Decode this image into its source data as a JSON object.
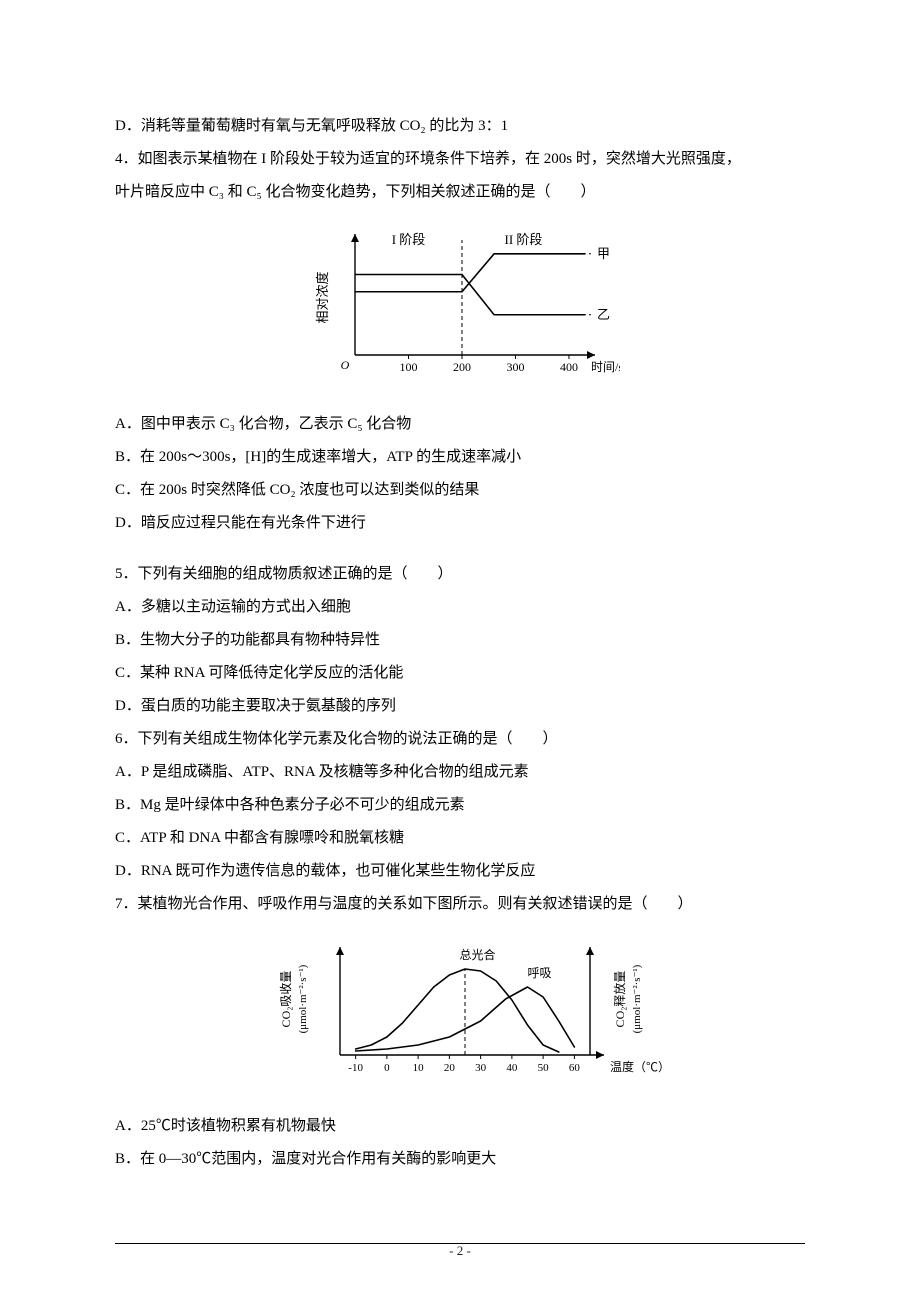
{
  "q3": {
    "optD": "D．消耗等量葡萄糖时有氧与无氧呼吸释放 CO₂ 的比为 3：1"
  },
  "q4": {
    "stem1": "4．如图表示某植物在 I 阶段处于较为适宜的环境条件下培养，在 200s 时，突然增大光照强度，",
    "stem2": "叶片暗反应中 C₃ 和 C₅ 化合物变化趋势，下列相关叙述正确的是（　　）",
    "optA": "A．图中甲表示 C₃ 化合物，乙表示 C₅ 化合物",
    "optB": "B．在 200s～300s，[H]的生成速率增大，ATP 的生成速率减小",
    "optC": "C．在 200s 时突然降低 CO₂ 浓度也可以达到类似的结果",
    "optD": "D．暗反应过程只能在有光条件下进行",
    "chart": {
      "type": "line",
      "xlabel": "时间/s",
      "ylabel": "相对浓度",
      "xticks": [
        100,
        200,
        300,
        400
      ],
      "xlim": [
        0,
        430
      ],
      "divider_x": 200,
      "phase1_label": "I 阶段",
      "phase2_label": "II 阶段",
      "axis_color": "#000000",
      "line_color": "#000000",
      "background": "#ffffff",
      "series": [
        {
          "name": "甲",
          "label": "甲",
          "points": [
            [
              0,
              55
            ],
            [
              200,
              55
            ],
            [
              260,
              88
            ],
            [
              430,
              88
            ]
          ]
        },
        {
          "name": "乙",
          "label": "乙",
          "points": [
            [
              0,
              70
            ],
            [
              200,
              70
            ],
            [
              260,
              35
            ],
            [
              430,
              35
            ]
          ]
        }
      ],
      "label_fontsize": 13
    }
  },
  "q5": {
    "stem": "5．下列有关细胞的组成物质叙述正确的是（　　）",
    "optA": "A．多糖以主动运输的方式出入细胞",
    "optB": "B．生物大分子的功能都具有物种特异性",
    "optC": "C．某种 RNA 可降低待定化学反应的活化能",
    "optD": "D．蛋白质的功能主要取决于氨基酸的序列"
  },
  "q6": {
    "stem": "6．下列有关组成生物体化学元素及化合物的说法正确的是（　　）",
    "optA": "A．P 是组成磷脂、ATP、RNA 及核糖等多种化合物的组成元素",
    "optB": "B．Mg 是叶绿体中各种色素分子必不可少的组成元素",
    "optC": "C．ATP 和 DNA 中都含有腺嘌呤和脱氧核糖",
    "optD": "D．RNA 既可作为遗传信息的载体，也可催化某些生物化学反应"
  },
  "q7": {
    "stem": "7．某植物光合作用、呼吸作用与温度的关系如下图所示。则有关叙述错误的是（　　）",
    "optA": "A．25℃时该植物积累有机物最快",
    "optB": "B．在 0—30℃范围内，温度对光合作用有关酶的影响更大",
    "chart": {
      "type": "line",
      "xlabel": "温度（℃）",
      "ylabel_left_l1": "CO₂吸收量",
      "ylabel_left_l2": "(μmol·m⁻²·s⁻¹)",
      "ylabel_right_l1": "CO₂释放量",
      "ylabel_right_l2": "(μmol·m⁻²·s⁻¹)",
      "xticks": [
        -10,
        0,
        10,
        20,
        30,
        40,
        50,
        60
      ],
      "xlim": [
        -15,
        65
      ],
      "axis_color": "#000000",
      "line_color": "#000000",
      "background": "#ffffff",
      "dashed_x": 25,
      "series_labels": {
        "left": "总光合",
        "right": "呼吸"
      },
      "curves": {
        "gross": [
          [
            -10,
            6
          ],
          [
            -5,
            10
          ],
          [
            0,
            18
          ],
          [
            5,
            32
          ],
          [
            10,
            50
          ],
          [
            15,
            68
          ],
          [
            20,
            80
          ],
          [
            25,
            86
          ],
          [
            30,
            84
          ],
          [
            35,
            74
          ],
          [
            40,
            55
          ],
          [
            45,
            30
          ],
          [
            50,
            10
          ],
          [
            55,
            3
          ]
        ],
        "resp": [
          [
            -10,
            4
          ],
          [
            0,
            6
          ],
          [
            10,
            10
          ],
          [
            20,
            18
          ],
          [
            30,
            34
          ],
          [
            38,
            56
          ],
          [
            45,
            68
          ],
          [
            50,
            58
          ],
          [
            55,
            34
          ],
          [
            60,
            8
          ]
        ]
      },
      "label_fontsize": 12
    }
  },
  "page_number": "- 2 -"
}
